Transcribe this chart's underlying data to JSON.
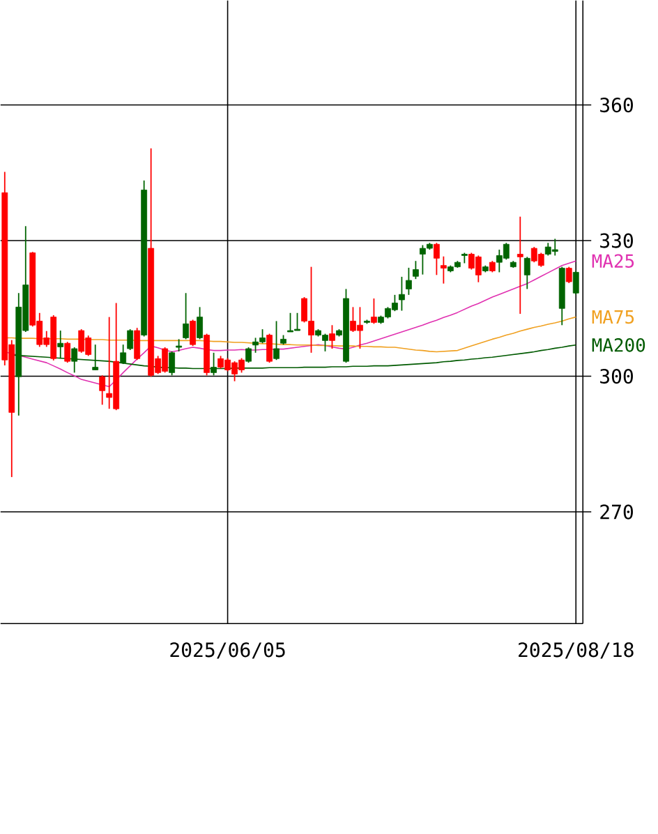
{
  "chart_data": {
    "type": "candlestick",
    "categories": [
      null,
      null,
      null,
      null,
      null,
      null,
      null,
      null,
      null,
      null,
      null,
      null,
      null,
      null,
      null,
      null,
      null,
      null,
      null,
      null,
      null,
      null,
      null,
      null,
      null,
      null,
      null,
      null,
      null,
      null,
      null,
      null,
      "2025/06/05",
      null,
      null,
      null,
      null,
      null,
      null,
      null,
      null,
      null,
      null,
      null,
      null,
      null,
      null,
      null,
      null,
      null,
      null,
      null,
      null,
      null,
      null,
      null,
      null,
      null,
      null,
      null,
      null,
      null,
      null,
      null,
      null,
      null,
      null,
      null,
      null,
      null,
      null,
      null,
      null,
      null,
      null,
      null,
      null,
      null,
      null,
      null,
      null,
      null,
      "2025/08/18"
    ],
    "ohlc": [
      [
        340.6,
        345.2,
        302.4,
        303.6
      ],
      [
        307.0,
        308.0,
        277.7,
        292.0
      ],
      [
        299.9,
        318.4,
        291.3,
        315.3
      ],
      [
        310.1,
        333.2,
        309.8,
        320.2
      ],
      [
        327.3,
        327.5,
        311.0,
        311.3
      ],
      [
        312.2,
        314.0,
        306.5,
        307.0
      ],
      [
        308.5,
        310.0,
        306.5,
        307.0
      ],
      [
        313.1,
        313.5,
        303.5,
        303.9
      ],
      [
        306.5,
        310.1,
        303.9,
        307.3
      ],
      [
        307.3,
        307.6,
        303.0,
        303.3
      ],
      [
        303.3,
        306.4,
        300.8,
        306.1
      ],
      [
        310.1,
        310.4,
        305.2,
        305.5
      ],
      [
        308.5,
        309.0,
        304.5,
        304.8
      ],
      [
        301.4,
        307.0,
        301.4,
        302.0
      ],
      [
        299.9,
        300.2,
        293.7,
        296.8
      ],
      [
        296.2,
        313.1,
        292.8,
        295.3
      ],
      [
        303.3,
        316.2,
        292.5,
        292.8
      ],
      [
        303.0,
        307.0,
        302.7,
        305.2
      ],
      [
        306.1,
        310.4,
        305.8,
        310.1
      ],
      [
        310.1,
        310.7,
        303.6,
        303.9
      ],
      [
        309.1,
        343.3,
        308.8,
        341.2
      ],
      [
        328.3,
        350.4,
        299.9,
        300.2
      ],
      [
        303.9,
        304.5,
        300.5,
        300.8
      ],
      [
        306.1,
        306.4,
        300.8,
        301.1
      ],
      [
        300.8,
        305.5,
        300.2,
        305.2
      ],
      [
        306.4,
        308.2,
        305.5,
        306.7
      ],
      [
        308.5,
        318.4,
        308.2,
        311.6
      ],
      [
        312.2,
        312.5,
        306.7,
        307.0
      ],
      [
        308.5,
        315.3,
        308.2,
        313.1
      ],
      [
        309.1,
        309.4,
        300.2,
        300.8
      ],
      [
        300.8,
        305.2,
        300.2,
        302.0
      ],
      [
        303.9,
        304.5,
        301.7,
        302.0
      ],
      [
        303.6,
        304.0,
        301.1,
        301.4
      ],
      [
        303.0,
        303.3,
        298.9,
        300.5
      ],
      [
        303.6,
        304.0,
        300.8,
        301.4
      ],
      [
        303.3,
        306.4,
        303.0,
        306.1
      ],
      [
        306.9,
        308.5,
        305.2,
        307.6
      ],
      [
        307.6,
        310.4,
        307.3,
        308.5
      ],
      [
        309.1,
        309.4,
        303.0,
        303.3
      ],
      [
        303.9,
        312.2,
        303.6,
        306.1
      ],
      [
        307.3,
        309.1,
        307.0,
        308.2
      ],
      [
        309.8,
        314.0,
        309.8,
        310.1
      ],
      [
        310.1,
        314.0,
        310.1,
        310.4
      ],
      [
        317.2,
        317.5,
        311.9,
        312.2
      ],
      [
        312.2,
        324.2,
        305.2,
        309.1
      ],
      [
        309.1,
        310.4,
        308.8,
        310.1
      ],
      [
        307.9,
        309.4,
        305.5,
        309.1
      ],
      [
        309.4,
        311.3,
        306.1,
        307.9
      ],
      [
        309.1,
        310.4,
        308.8,
        310.1
      ],
      [
        303.3,
        319.3,
        303.0,
        317.2
      ],
      [
        312.2,
        315.3,
        309.8,
        310.1
      ],
      [
        311.3,
        315.3,
        306.1,
        310.1
      ],
      [
        311.9,
        312.5,
        311.6,
        312.2
      ],
      [
        313.1,
        317.2,
        311.6,
        311.9
      ],
      [
        311.9,
        313.4,
        311.6,
        313.1
      ],
      [
        313.1,
        315.3,
        312.8,
        315.0
      ],
      [
        314.7,
        318.0,
        314.4,
        316.2
      ],
      [
        316.9,
        322.0,
        314.5,
        318.1
      ],
      [
        319.3,
        324.0,
        318.0,
        321.2
      ],
      [
        322.1,
        325.5,
        321.5,
        323.6
      ],
      [
        327.0,
        329.0,
        322.5,
        328.3
      ],
      [
        328.3,
        329.5,
        328.0,
        329.2
      ],
      [
        329.2,
        329.5,
        322.4,
        326.1
      ],
      [
        324.5,
        326.5,
        320.5,
        323.9
      ],
      [
        323.3,
        324.5,
        323.0,
        324.2
      ],
      [
        324.2,
        325.5,
        324.0,
        325.2
      ],
      [
        326.7,
        327.3,
        325.0,
        327.0
      ],
      [
        327.0,
        327.3,
        323.6,
        323.9
      ],
      [
        326.4,
        326.7,
        320.8,
        322.4
      ],
      [
        323.3,
        324.5,
        323.0,
        324.2
      ],
      [
        325.2,
        325.5,
        323.0,
        323.3
      ],
      [
        325.2,
        328.0,
        323.0,
        326.7
      ],
      [
        326.1,
        329.5,
        325.8,
        329.2
      ],
      [
        324.2,
        325.5,
        324.0,
        325.2
      ],
      [
        327.0,
        335.3,
        313.8,
        326.4
      ],
      [
        322.4,
        326.4,
        319.3,
        326.1
      ],
      [
        328.3,
        328.6,
        325.2,
        325.5
      ],
      [
        327.0,
        327.3,
        324.2,
        324.5
      ],
      [
        327.0,
        329.5,
        326.7,
        328.6
      ],
      [
        327.6,
        330.4,
        326.7,
        328.0
      ],
      [
        315.0,
        324.2,
        311.3,
        323.9
      ],
      [
        323.9,
        324.2,
        320.6,
        320.9
      ],
      [
        318.4,
        323.3,
        318.1,
        323.0
      ]
    ],
    "colors": [
      "#ff0000",
      "#ff0000",
      "#006400",
      "#006400",
      "#ff0000",
      "#ff0000",
      "#ff0000",
      "#ff0000",
      "#006400",
      "#ff0000",
      "#006400",
      "#ff0000",
      "#ff0000",
      "#006400",
      "#ff0000",
      "#ff0000",
      "#ff0000",
      "#006400",
      "#006400",
      "#ff0000",
      "#006400",
      "#ff0000",
      "#ff0000",
      "#ff0000",
      "#006400",
      "#006400",
      "#006400",
      "#ff0000",
      "#006400",
      "#ff0000",
      "#006400",
      "#ff0000",
      "#ff0000",
      "#ff0000",
      "#ff0000",
      "#006400",
      "#006400",
      "#006400",
      "#ff0000",
      "#006400",
      "#006400",
      "#006400",
      "#006400",
      "#ff0000",
      "#ff0000",
      "#006400",
      "#006400",
      "#ff0000",
      "#006400",
      "#006400",
      "#ff0000",
      "#ff0000",
      "#006400",
      "#ff0000",
      "#006400",
      "#006400",
      "#006400",
      "#006400",
      "#006400",
      "#006400",
      "#006400",
      "#006400",
      "#ff0000",
      "#ff0000",
      "#006400",
      "#006400",
      "#006400",
      "#ff0000",
      "#ff0000",
      "#006400",
      "#ff0000",
      "#006400",
      "#006400",
      "#006400",
      "#ff0000",
      "#006400",
      "#ff0000",
      "#ff0000",
      "#006400",
      "#006400",
      "#006400",
      "#ff0000",
      "#006400"
    ],
    "series": [
      {
        "name": "MA25",
        "type": "line",
        "color": "#e030b0",
        "values": [
          305.4,
          305.0,
          304.6,
          304.2,
          303.8,
          303.4,
          303.0,
          302.3,
          301.6,
          300.8,
          300.1,
          299.3,
          298.9,
          298.5,
          298.1,
          297.7,
          299.2,
          300.8,
          302.3,
          303.8,
          305.2,
          306.7,
          306.3,
          305.8,
          305.4,
          305.7,
          306.1,
          306.4,
          306.2,
          305.9,
          305.7,
          305.7,
          305.8,
          305.8,
          305.9,
          305.8,
          305.8,
          305.9,
          305.9,
          306.0,
          306.0,
          306.2,
          306.4,
          306.6,
          306.8,
          307.0,
          306.8,
          306.5,
          306.2,
          306.0,
          306.4,
          306.9,
          307.3,
          307.8,
          308.3,
          308.8,
          309.3,
          309.8,
          310.3,
          310.8,
          311.3,
          311.9,
          312.4,
          313.0,
          313.5,
          314.1,
          314.8,
          315.5,
          316.1,
          316.8,
          317.5,
          318.1,
          318.7,
          319.3,
          319.9,
          320.5,
          321.3,
          322.1,
          322.9,
          323.7,
          324.5,
          325.0,
          325.5
        ]
      },
      {
        "name": "MA75",
        "type": "line",
        "color": "#f0a020",
        "values": [
          308.5,
          308.5,
          308.4,
          308.4,
          308.4,
          308.3,
          308.3,
          308.3,
          308.3,
          308.2,
          308.2,
          308.2,
          308.1,
          308.1,
          308.1,
          308.0,
          308.0,
          308.0,
          308.0,
          307.9,
          307.9,
          307.9,
          307.9,
          307.9,
          307.9,
          307.9,
          307.9,
          307.9,
          307.9,
          307.8,
          307.7,
          307.7,
          307.6,
          307.5,
          307.5,
          307.4,
          307.3,
          307.2,
          307.2,
          307.1,
          307.0,
          307.0,
          306.9,
          306.9,
          306.9,
          306.8,
          306.8,
          306.8,
          306.7,
          306.7,
          306.7,
          306.6,
          306.6,
          306.5,
          306.5,
          306.4,
          306.4,
          306.2,
          306.0,
          305.8,
          305.7,
          305.5,
          305.4,
          305.5,
          305.6,
          305.7,
          306.2,
          306.7,
          307.2,
          307.7,
          308.2,
          308.6,
          309.1,
          309.5,
          310.0,
          310.4,
          310.8,
          311.1,
          311.5,
          311.8,
          312.2,
          312.7,
          313.1
        ]
      },
      {
        "name": "MA200",
        "type": "line",
        "color": "#005a00",
        "values": [
          null,
          304.7,
          304.6,
          304.5,
          304.4,
          304.3,
          304.2,
          304.1,
          304.0,
          303.9,
          303.8,
          303.7,
          303.6,
          303.5,
          303.4,
          303.3,
          303.1,
          302.9,
          302.7,
          302.5,
          302.3,
          302.2,
          302.0,
          301.9,
          301.9,
          301.8,
          301.8,
          301.7,
          301.7,
          301.7,
          301.7,
          301.7,
          301.7,
          301.8,
          301.8,
          301.8,
          301.8,
          301.8,
          301.9,
          301.9,
          301.9,
          301.9,
          301.9,
          302.0,
          302.0,
          302.0,
          302.0,
          302.1,
          302.1,
          302.1,
          302.2,
          302.2,
          302.2,
          302.3,
          302.3,
          302.3,
          302.4,
          302.5,
          302.6,
          302.7,
          302.8,
          302.9,
          303.0,
          303.2,
          303.3,
          303.5,
          303.6,
          303.8,
          303.9,
          304.1,
          304.2,
          304.4,
          304.6,
          304.8,
          305.0,
          305.2,
          305.4,
          305.7,
          305.9,
          306.2,
          306.4,
          306.7,
          306.9
        ]
      }
    ],
    "ylim": [
      245.3,
      383.1
    ],
    "yticks": [
      270,
      300,
      330,
      360
    ],
    "grid": true
  }
}
